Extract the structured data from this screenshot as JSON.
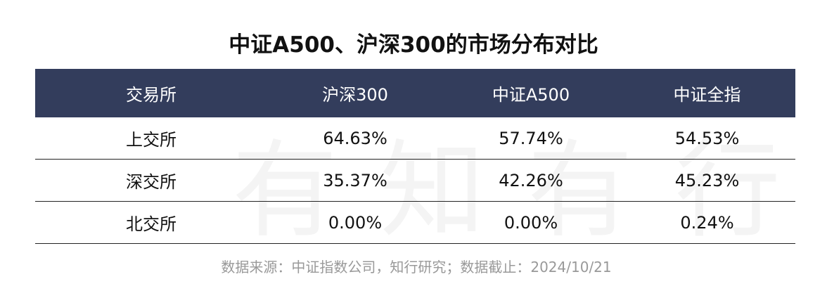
{
  "title": "中证A500、沪深300的市场分布对比",
  "watermark": "有知有行",
  "table": {
    "header": [
      "交易所",
      "沪深300",
      "中证A500",
      "中证全指"
    ],
    "rows": [
      [
        "上交所",
        "64.63%",
        "57.74%",
        "54.53%"
      ],
      [
        "深交所",
        "35.37%",
        "42.26%",
        "45.23%"
      ],
      [
        "北交所",
        "0.00%",
        "0.00%",
        "0.24%"
      ]
    ]
  },
  "source": "数据来源：中证指数公司，知行研究；数据截止：2024/10/21"
}
